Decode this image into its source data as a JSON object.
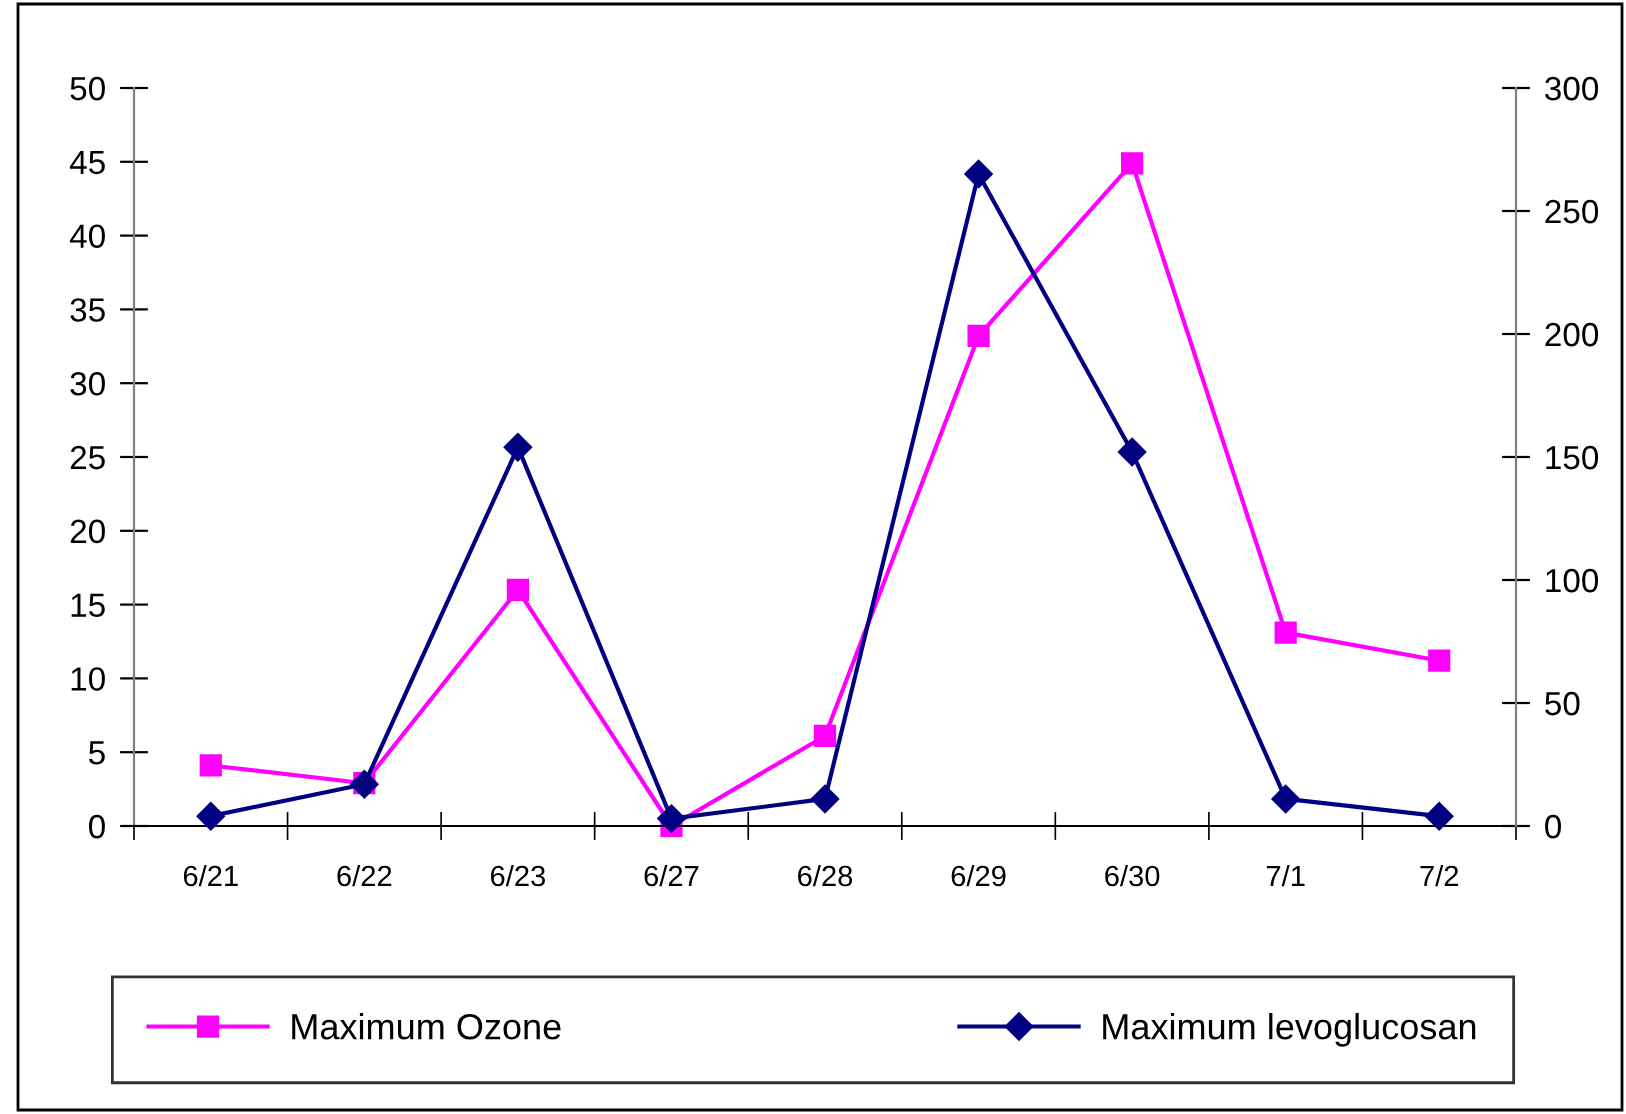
{
  "chart_data": {
    "type": "line",
    "categories": [
      "6/21",
      "6/22",
      "6/23",
      "6/27",
      "6/28",
      "6/29",
      "6/30",
      "7/1",
      "7/2"
    ],
    "series": [
      {
        "name": "Maximum Ozone",
        "color": "#ff00ff",
        "marker": "square",
        "values": [
          4.1,
          2.9,
          16.0,
          0.0,
          6.1,
          33.2,
          44.9,
          13.1,
          11.2
        ]
      },
      {
        "name": "Maximum levoglucosan",
        "color": "#000080",
        "marker": "diamond",
        "axis": "y2",
        "values": [
          4,
          17,
          154,
          3,
          11,
          265,
          152,
          11,
          4
        ]
      }
    ],
    "ylim": [
      0,
      50
    ],
    "yticks": [
      0,
      5,
      10,
      15,
      20,
      25,
      30,
      35,
      40,
      45,
      50
    ],
    "y2lim": [
      0,
      300
    ],
    "y2ticks": [
      0,
      50,
      100,
      150,
      200,
      250,
      300
    ],
    "grid": false,
    "legend": "bottom",
    "line_style": "solid"
  }
}
